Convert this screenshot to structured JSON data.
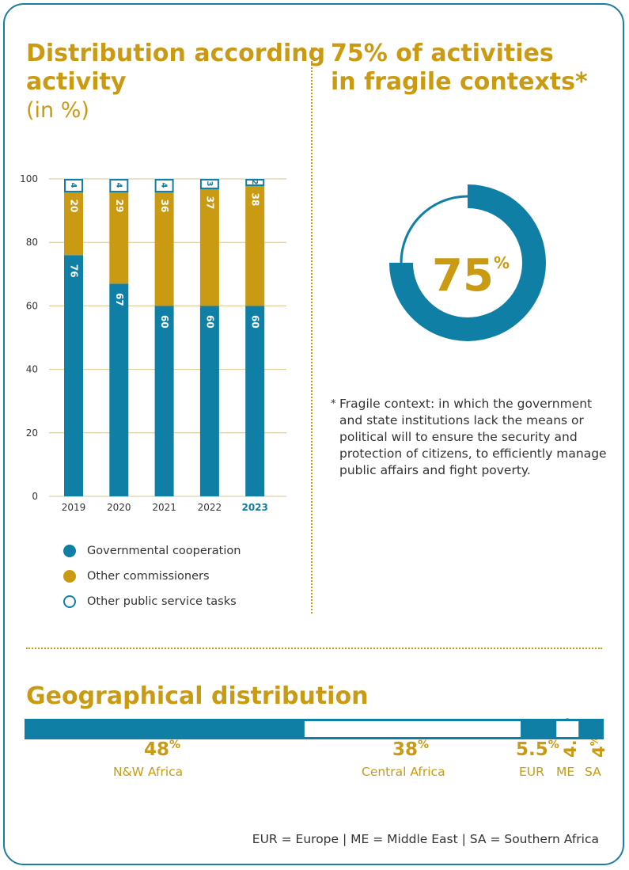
{
  "left_title": {
    "line1": "Distribution according",
    "line2": "activity",
    "unit": "(in %)"
  },
  "right_title": {
    "line1": "75% of activities",
    "line2": "in fragile contexts*"
  },
  "colors": {
    "primary": "#0f7fa5",
    "accent": "#c99a12",
    "text": "#333333"
  },
  "chart_data": [
    {
      "type": "bar",
      "stacked": true,
      "categories": [
        "2019",
        "2020",
        "2021",
        "2022",
        "2023"
      ],
      "highlight_category": "2023",
      "series": [
        {
          "name": "Governmental cooperation",
          "values": [
            76,
            67,
            60,
            60,
            60
          ],
          "color": "#0f7fa5"
        },
        {
          "name": "Other commissioners",
          "values": [
            20,
            29,
            36,
            37,
            38
          ],
          "color": "#c99a12"
        },
        {
          "name": "Other public service tasks",
          "values": [
            4,
            4,
            4,
            3,
            2
          ],
          "color": "#ffffff"
        }
      ],
      "ylim": [
        0,
        100
      ],
      "yticks": [
        0,
        20,
        40,
        60,
        80,
        100
      ],
      "grid": true,
      "legend": "bottom"
    },
    {
      "type": "pie",
      "variant": "donut",
      "values": [
        75,
        25
      ],
      "center_value": "75",
      "center_unit": "%"
    },
    {
      "type": "bar",
      "stacked": true,
      "orientation": "horizontal",
      "title": "Geographical distribution",
      "categories": [
        "N&W Africa",
        "Central Africa",
        "EUR",
        "ME",
        "SA"
      ],
      "values": [
        48,
        38,
        5.5,
        4.5,
        4
      ],
      "value_labels": [
        "48",
        "38",
        "5.5",
        "4.5",
        "4"
      ],
      "unit": "%",
      "fills": [
        "#0f7fa5",
        "#ffffff",
        "#0f7fa5",
        "#ffffff",
        "#0f7fa5"
      ]
    }
  ],
  "footnote": {
    "marker": "*",
    "text": "Fragile context: in which the government and state institutions lack the means or political will to ensure the security and protection of citizens, to efficiently manage public affairs and fight poverty."
  },
  "geo": {
    "title": "Geographical distribution",
    "note": "EUR = Europe | ME = Middle East | SA = Southern Africa"
  }
}
